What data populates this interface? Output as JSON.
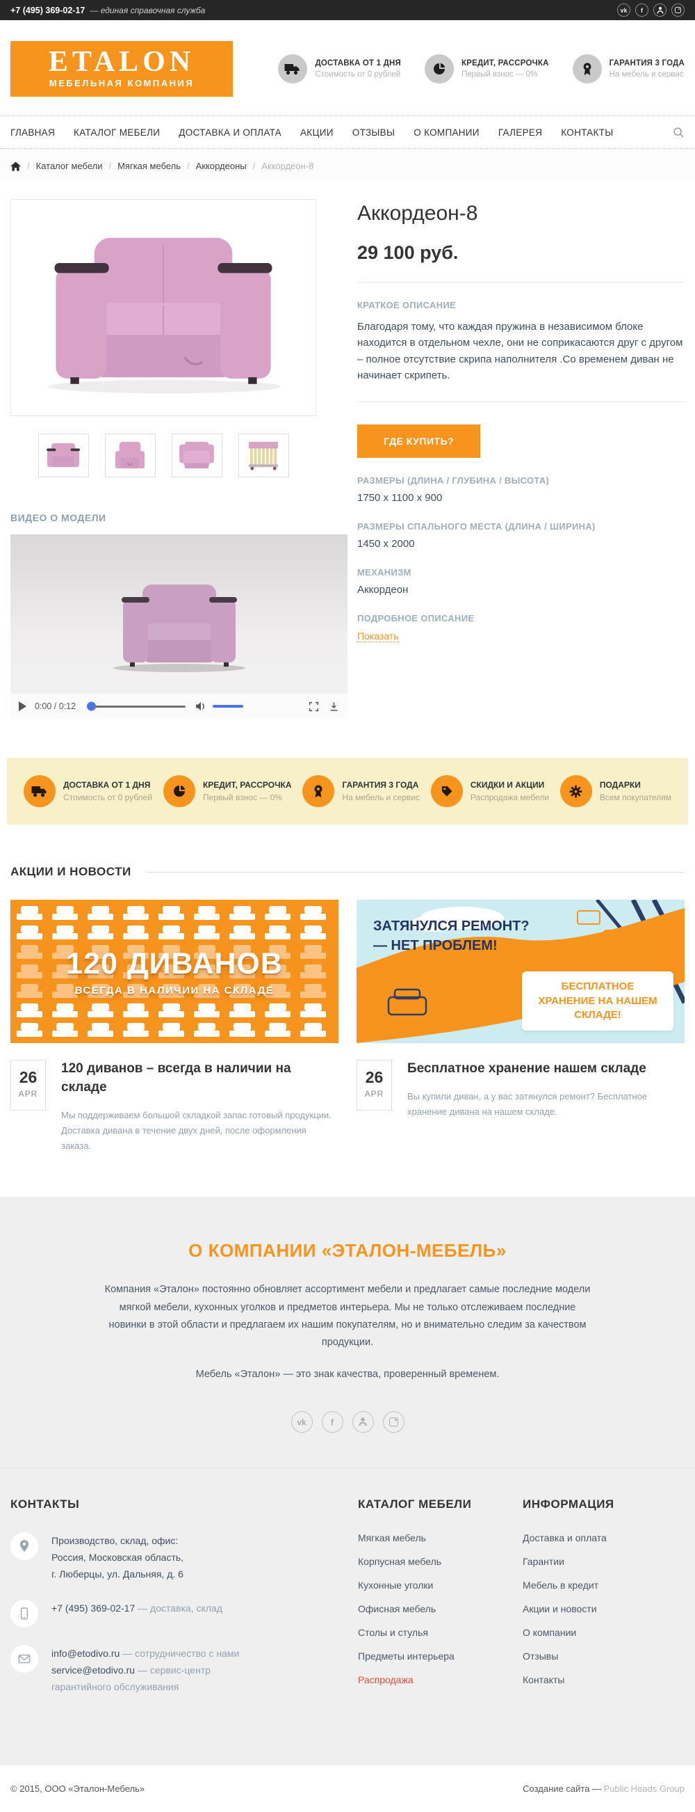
{
  "topbar": {
    "phone": "+7 (495) 369-02-17",
    "tagline": "— единая справочная служба",
    "socials": [
      "vk-icon",
      "facebook-icon",
      "odnoklassniki-icon",
      "instagram-icon"
    ]
  },
  "header": {
    "logo_title": "ETALON",
    "logo_subtitle": "МЕБЕЛЬНАЯ КОМПАНИЯ",
    "benefits": [
      {
        "icon": "truck-icon",
        "label": "ДОСТАВКА ОТ 1 ДНЯ",
        "sub": "Стоимость от 0 рублей"
      },
      {
        "icon": "credit-pie-icon",
        "label": "КРЕДИТ, РАССРОЧКА",
        "sub": "Первый взнос — 0%"
      },
      {
        "icon": "medal-icon",
        "label": "ГАРАНТИЯ 3 ГОДА",
        "sub": "На мебель и сервис"
      }
    ]
  },
  "nav": {
    "items": [
      "ГЛАВНАЯ",
      "КАТАЛОГ МЕБЕЛИ",
      "ДОСТАВКА И ОПЛАТА",
      "АКЦИИ",
      "ОТЗЫВЫ",
      "О КОМПАНИИ",
      "ГАЛЕРЕЯ",
      "КОНТАКТЫ"
    ],
    "search_icon": "search-icon"
  },
  "breadcrumb": {
    "separator": "/",
    "items": [
      "Каталог мебели",
      "Мягкая мебель",
      "Аккордеоны"
    ],
    "current": "Аккордеон-8"
  },
  "product": {
    "title": "Аккордеон-8",
    "price": "29 100 руб.",
    "short_desc_label": "КРАТКОЕ ОПИСАНИЕ",
    "short_desc": "Благодаря тому, что каждая пружина в независимом блоке находится в отдельном чехле, они не соприкасаются друг с другом – полное отсутствие скрипа наполнителя .Со временем диван не начинает скрипеть.",
    "buy_button": "ГДЕ КУПИТЬ?",
    "specs": [
      {
        "label": "РАЗМЕРЫ (ДЛИНА / ГЛУБИНА / ВЫСОТА)",
        "value": "1750 x 1100 x 900"
      },
      {
        "label": "РАЗМЕРЫ СПАЛЬНОГО МЕСТА (ДЛИНА / ШИРИНА)",
        "value": "1450 x 2000"
      },
      {
        "label": "МЕХАНИЗМ",
        "value": "Аккордеон"
      }
    ],
    "detail_label": "ПОДРОБНОЕ ОПИСАНИЕ",
    "detail_link": "Показать"
  },
  "video": {
    "heading": "ВИДЕО О МОДЕЛИ",
    "time": "0:00 / 0:12"
  },
  "benefits_bar": {
    "items": [
      {
        "icon": "truck-icon",
        "label": "ДОСТАВКА ОТ 1 ДНЯ",
        "sub": "Стоимость от 0 рублей"
      },
      {
        "icon": "credit-pie-icon",
        "label": "КРЕДИТ, РАССРОЧКА",
        "sub": "Первый взнос — 0%"
      },
      {
        "icon": "medal-icon",
        "label": "ГАРАНТИЯ 3 ГОДА",
        "sub": "На мебель и сервис"
      },
      {
        "icon": "tag-icon",
        "label": "СКИДКИ И АКЦИИ",
        "sub": "Распродажа мебели"
      },
      {
        "icon": "gear-icon",
        "label": "ПОДАРКИ",
        "sub": "Всем покупателям"
      }
    ]
  },
  "news": {
    "heading": "АКЦИИ И НОВОСТИ",
    "banner1": {
      "line1": "120 ДИВАНОВ",
      "line2": "ВСЕГДА В НАЛИЧИИ НА СКЛАДЕ"
    },
    "banner2": {
      "line1": "ЗАТЯНУЛСЯ РЕМОНТ?",
      "line2": "— НЕТ ПРОБЛЕМ!",
      "box": "БЕСПЛАТНОЕ ХРАНЕНИЕ НА НАШЕМ СКЛАДЕ!"
    },
    "items": [
      {
        "date_day": "26",
        "date_month": "APR",
        "title": "120 диванов – всегда в наличии на складе",
        "text": "Мы поддерживаем большой складкой запас готовый продукции. Доставка дивана в течение двух дней, после оформления заказа."
      },
      {
        "date_day": "26",
        "date_month": "APR",
        "title": "Бесплатное хранение нашем складе",
        "text": "Вы купили диван, а у вас затянулся ремонт? Бесплатное хранение дивана на нашем складе."
      }
    ]
  },
  "about": {
    "heading_prefix": "О КОМПАНИИ ",
    "heading_brand": "«ЭТАЛОН-МЕБЕЛЬ»",
    "p1": "Компания «Эталон» постоянно обновляет ассортимент мебели и предлагает самые последние модели мягкой мебели, кухонных уголков и предметов интерьера. Мы не только отслеживаем последние новинки в этой области и предлагаем их нашим покупателям, но и внимательно следим за качеством продукции.",
    "p2": "Мебель «Эталон» — это знак качества, проверенный временем."
  },
  "footer": {
    "contacts": {
      "heading": "КОНТАКТЫ",
      "address_l1": "Производство, склад, офис:",
      "address_l2": "Россия, Московская область,",
      "address_l3": "г. Люберцы, ул. Дальняя, д. 6",
      "phone": "+7 (495) 369-02-17",
      "phone_note": "— доставка, склад",
      "email1": "info@etodivo.ru",
      "email1_note": "— сотрудничество с нами",
      "email2": "service@etodivo.ru",
      "email2_note": "— сервис-центр",
      "email_note_extra": "гарантийного обслуживания"
    },
    "catalog": {
      "heading": "КАТАЛОГ МЕБЕЛИ",
      "items": [
        "Мягкая мебель",
        "Корпусная мебель",
        "Кухонные уголки",
        "Офисная мебель",
        "Столы и стулья",
        "Предметы интерьера",
        "Распродажа"
      ]
    },
    "info": {
      "heading": "ИНФОРМАЦИЯ",
      "items": [
        "Доставка и оплата",
        "Гарантии",
        "Мебель в кредит",
        "Акции и новости",
        "О компании",
        "Отзывы",
        "Контакты"
      ]
    },
    "copyright": "© 2015, ООО «Эталон-Мебель»",
    "credits_prefix": "Создание сайта — ",
    "credits_brand": "Public Heads Group"
  },
  "colors": {
    "accent": "#f7941e",
    "topbar_dark": "#262626",
    "text": "#3f4f5f",
    "muted_label": "#9fafbe",
    "sale_red": "#e84b3c",
    "banner_blue": "#cdecf2",
    "banner_navy": "#24355e",
    "yellow_bar": "#f7f0c9",
    "sofa_pink": "#d9a3c8"
  }
}
